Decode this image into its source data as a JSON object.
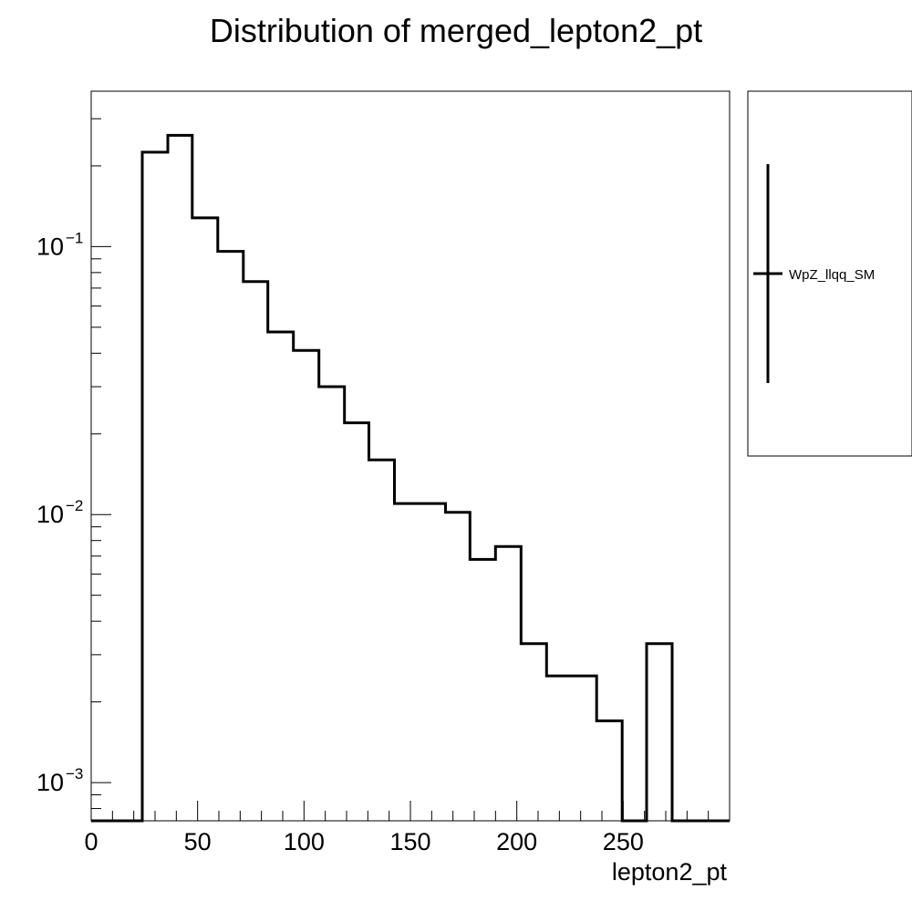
{
  "chart_data": {
    "type": "bar",
    "style": "step-histogram",
    "title": "Distribution of merged_lepton2_pt",
    "xlabel": "lepton2_pt",
    "ylabel": "",
    "xlim": [
      0,
      300
    ],
    "ylim": [
      0.00072,
      0.38
    ],
    "yscale": "log",
    "grid": false,
    "legend_position": "right",
    "x_ticks": [
      {
        "value": 0,
        "label": "0"
      },
      {
        "value": 50,
        "label": "50"
      },
      {
        "value": 100,
        "label": "100"
      },
      {
        "value": 150,
        "label": "150"
      },
      {
        "value": 200,
        "label": "200"
      },
      {
        "value": 250,
        "label": "250"
      }
    ],
    "y_ticks": [
      {
        "value": 0.1,
        "base": "10",
        "exp": "−1"
      },
      {
        "value": 0.01,
        "base": "10",
        "exp": "−2"
      },
      {
        "value": 0.001,
        "base": "10",
        "exp": "−3"
      }
    ],
    "bin_edges": [
      0,
      12,
      24,
      36,
      47.5,
      59.5,
      71.5,
      83,
      95,
      107,
      119,
      130.5,
      142.5,
      154.5,
      166.5,
      178,
      190,
      202,
      214,
      225.5,
      237.5,
      249.5,
      261,
      273,
      300
    ],
    "values": [
      0,
      0,
      0.225,
      0.26,
      0.128,
      0.096,
      0.074,
      0.048,
      0.041,
      0.03,
      0.022,
      0.016,
      0.011,
      0.011,
      0.0102,
      0.0068,
      0.0076,
      0.0033,
      0.0025,
      0.0025,
      0.0017,
      0,
      0.0033,
      0
    ],
    "series": [
      {
        "name": "WpZ_llqq_SM",
        "color": "#000000"
      }
    ]
  }
}
